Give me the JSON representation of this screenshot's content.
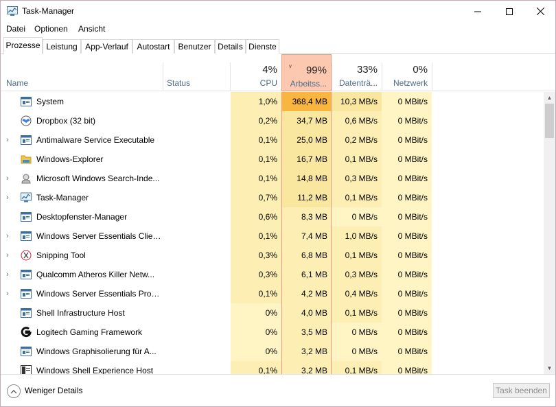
{
  "window": {
    "title": "Task-Manager"
  },
  "menu": [
    "Datei",
    "Optionen",
    "Ansicht"
  ],
  "tabs": [
    "Prozesse",
    "Leistung",
    "App-Verlauf",
    "Autostart",
    "Benutzer",
    "Details",
    "Dienste"
  ],
  "active_tab": "Prozesse",
  "columns": {
    "name": "Name",
    "status": "Status",
    "cpu": {
      "percent": "4%",
      "label": "CPU"
    },
    "memory": {
      "percent": "99%",
      "label": "Arbeitss..."
    },
    "disk": {
      "percent": "33%",
      "label": "Datenträ..."
    },
    "network": {
      "percent": "0%",
      "label": "Netzwerk"
    }
  },
  "sort_column": "memory",
  "colors": {
    "heat_light": "#fff4c4",
    "heat_mid": "#fdefb3",
    "heat_hot": "#f8b540",
    "sorted_header": "#fcc8b0"
  },
  "processes": [
    {
      "name": "System",
      "expandable": false,
      "icon": "window-app-icon",
      "cpu": "1,0%",
      "memory": "368,4 MB",
      "disk": "10,3 MB/s",
      "network": "0 MBit/s"
    },
    {
      "name": "Dropbox (32 bit)",
      "expandable": false,
      "icon": "dropbox-icon",
      "cpu": "0,2%",
      "memory": "34,7 MB",
      "disk": "0,6 MB/s",
      "network": "0 MBit/s"
    },
    {
      "name": "Antimalware Service Executable",
      "expandable": true,
      "icon": "window-app-icon",
      "cpu": "0,1%",
      "memory": "25,0 MB",
      "disk": "0,2 MB/s",
      "network": "0 MBit/s"
    },
    {
      "name": "Windows-Explorer",
      "expandable": false,
      "icon": "folder-icon",
      "cpu": "0,1%",
      "memory": "16,7 MB",
      "disk": "0,1 MB/s",
      "network": "0 MBit/s"
    },
    {
      "name": "Microsoft Windows Search-Inde...",
      "expandable": true,
      "icon": "search-indexer-icon",
      "cpu": "0,1%",
      "memory": "14,8 MB",
      "disk": "0,3 MB/s",
      "network": "0 MBit/s"
    },
    {
      "name": "Task-Manager",
      "expandable": true,
      "icon": "task-manager-icon",
      "cpu": "0,7%",
      "memory": "11,2 MB",
      "disk": "0,1 MB/s",
      "network": "0 MBit/s"
    },
    {
      "name": "Desktopfenster-Manager",
      "expandable": false,
      "icon": "window-app-icon",
      "cpu": "0,6%",
      "memory": "8,3 MB",
      "disk": "0 MB/s",
      "network": "0 MBit/s"
    },
    {
      "name": "Windows Server Essentials Clien...",
      "expandable": true,
      "icon": "window-app-icon",
      "cpu": "0,1%",
      "memory": "7,4 MB",
      "disk": "1,0 MB/s",
      "network": "0 MBit/s"
    },
    {
      "name": "Snipping Tool",
      "expandable": true,
      "icon": "scissors-icon",
      "cpu": "0,3%",
      "memory": "6,8 MB",
      "disk": "0,1 MB/s",
      "network": "0 MBit/s"
    },
    {
      "name": "Qualcomm Atheros Killer Netw...",
      "expandable": true,
      "icon": "window-app-icon",
      "cpu": "0,3%",
      "memory": "6,1 MB",
      "disk": "0,3 MB/s",
      "network": "0 MBit/s"
    },
    {
      "name": "Windows Server Essentials Provi...",
      "expandable": true,
      "icon": "window-app-icon",
      "cpu": "0,1%",
      "memory": "4,2 MB",
      "disk": "0,4 MB/s",
      "network": "0 MBit/s"
    },
    {
      "name": "Shell Infrastructure Host",
      "expandable": false,
      "icon": "window-app-icon",
      "cpu": "0%",
      "memory": "4,0 MB",
      "disk": "0,1 MB/s",
      "network": "0 MBit/s"
    },
    {
      "name": "Logitech Gaming Framework",
      "expandable": false,
      "icon": "logitech-icon",
      "cpu": "0%",
      "memory": "3,5 MB",
      "disk": "0 MB/s",
      "network": "0 MBit/s"
    },
    {
      "name": "Windows Graphisolierung für A...",
      "expandable": false,
      "icon": "window-app-icon",
      "cpu": "0%",
      "memory": "3,2 MB",
      "disk": "0 MB/s",
      "network": "0 MBit/s"
    },
    {
      "name": "Windows Shell Experience Host",
      "expandable": false,
      "icon": "shell-host-icon",
      "cpu": "0,1%",
      "memory": "3,2 MB",
      "disk": "0,1 MB/s",
      "network": "0 MBit/s"
    }
  ],
  "footer": {
    "fewer_details": "Weniger Details",
    "end_task": "Task beenden"
  }
}
